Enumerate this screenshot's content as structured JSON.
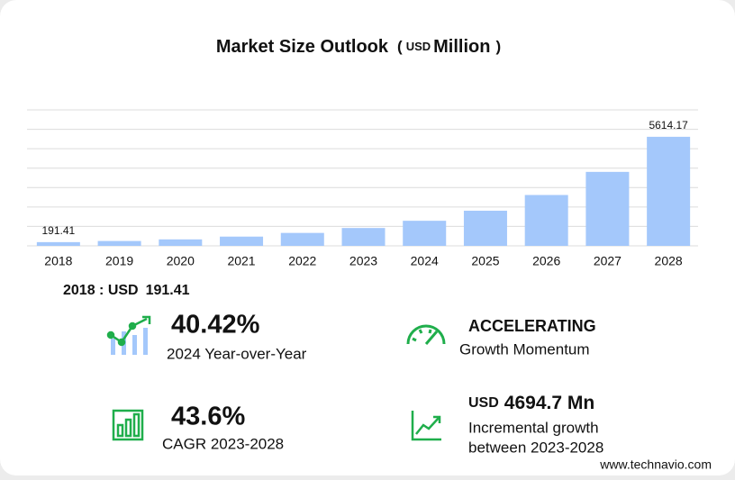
{
  "chart_data": {
    "type": "bar",
    "title": "Market Size Outlook",
    "unit_open": "(",
    "unit_currency": "USD",
    "unit_word": "Million",
    "unit_close": ")",
    "categories": [
      "2018",
      "2019",
      "2020",
      "2021",
      "2022",
      "2023",
      "2024",
      "2025",
      "2026",
      "2027",
      "2028"
    ],
    "values": [
      191.41,
      250,
      333,
      476,
      666,
      919.47,
      1291.1,
      1809,
      2618,
      3808,
      5614.17
    ],
    "value_labels": [
      "191.41",
      null,
      null,
      null,
      null,
      null,
      null,
      null,
      null,
      null,
      "5614.17"
    ],
    "color": "#a4c8fb",
    "ylim": [
      0,
      7000
    ],
    "yticks": [
      0,
      1000,
      2000,
      3000,
      4000,
      5000,
      6000,
      7000
    ],
    "grid": true
  },
  "highlight": {
    "label": "2018 : USD"
  },
  "stats": {
    "yoy": {
      "value": "40.42%",
      "label": "2024 Year-over-Year"
    },
    "momentum": {
      "value": "ACCELERATING",
      "label": "Growth Momentum"
    },
    "cagr": {
      "value": "43.6%",
      "label": "CAGR 2023-2028"
    },
    "incremental": {
      "currency": "USD",
      "value": "4694.7 Mn",
      "label_lines": [
        "Incremental growth",
        "between 2023-2028"
      ]
    }
  },
  "footer": "www.technavio.com"
}
